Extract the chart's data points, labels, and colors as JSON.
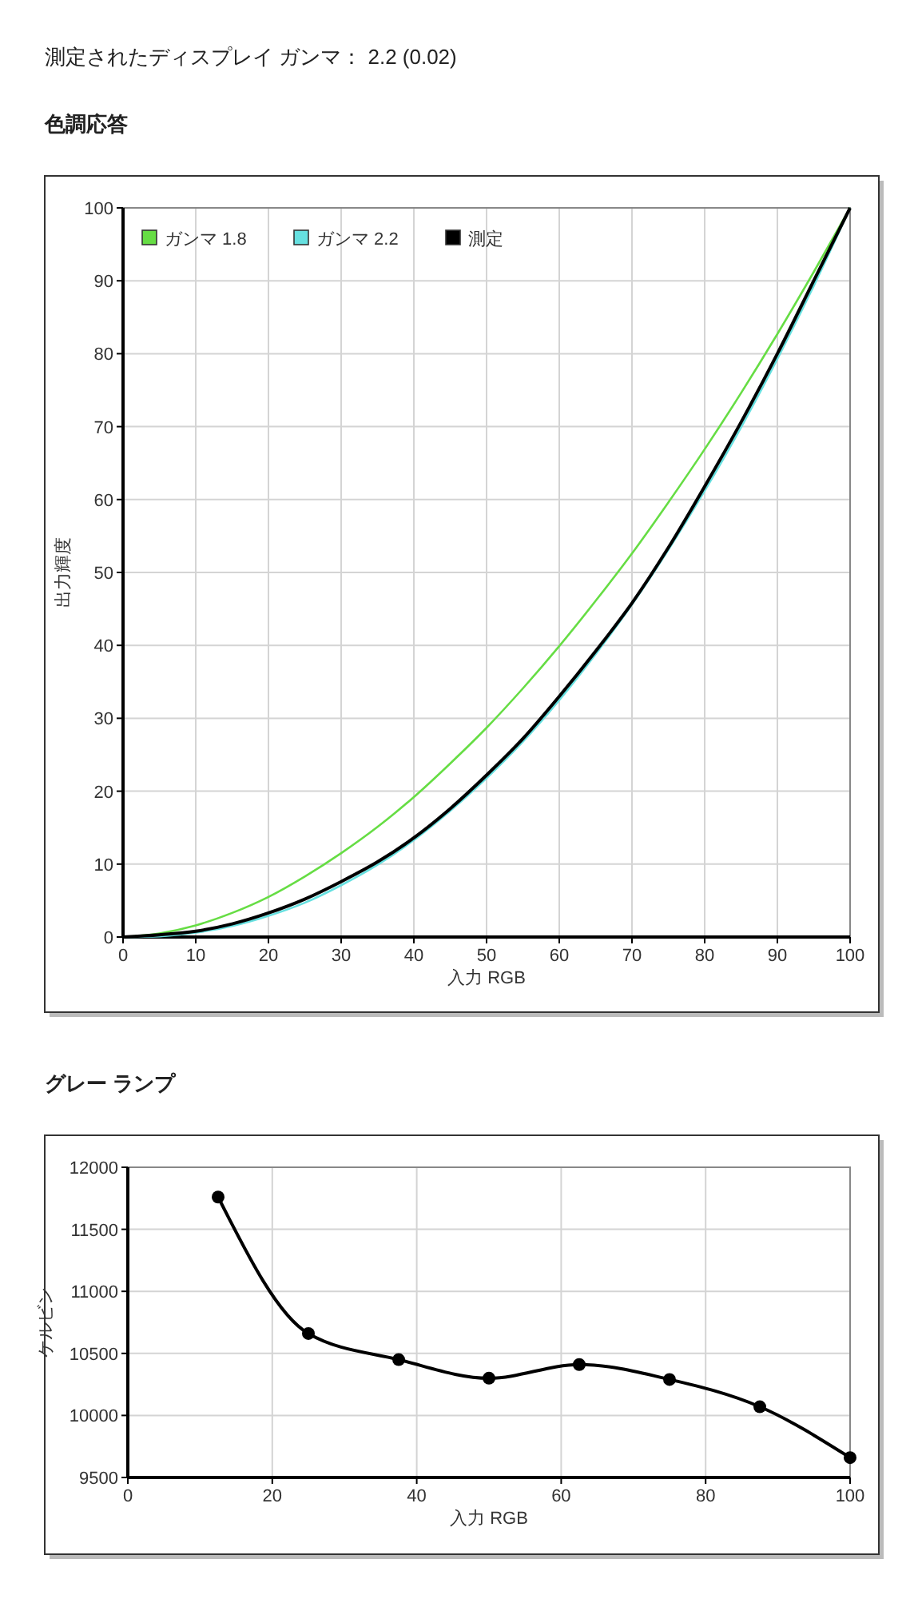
{
  "chart_data": [
    {
      "type": "line",
      "title": "測定されたディスプレイ ガンマ： 2.2 (0.02)",
      "subtitle": "色調応答",
      "xlabel": "入力 RGB",
      "ylabel": "出力輝度",
      "x": [
        0,
        5,
        10,
        15,
        20,
        25,
        30,
        35,
        40,
        45,
        50,
        55,
        60,
        65,
        70,
        75,
        80,
        85,
        90,
        95,
        100
      ],
      "series": [
        {
          "name": "ガンマ 1.8",
          "color": "#66dd44",
          "values": [
            0,
            0.5,
            1.6,
            3.3,
            5.5,
            8.3,
            11.5,
            15.1,
            19.2,
            23.8,
            28.7,
            34.1,
            39.9,
            46.1,
            52.6,
            59.6,
            66.9,
            74.6,
            82.7,
            91.2,
            100
          ]
        },
        {
          "name": "ガンマ 2.2",
          "color": "#66e0e0",
          "values": [
            0,
            0.1,
            0.6,
            1.5,
            2.9,
            4.7,
            7.1,
            9.9,
            13.3,
            17.3,
            21.8,
            26.8,
            32.5,
            38.8,
            45.6,
            53.1,
            61.2,
            69.9,
            79.3,
            89.3,
            100
          ]
        },
        {
          "name": "測定",
          "color": "#000000",
          "values": [
            0,
            0.3,
            0.8,
            1.8,
            3.3,
            5.2,
            7.6,
            10.3,
            13.6,
            17.6,
            22.2,
            27.2,
            33,
            39.2,
            45.8,
            53.4,
            61.8,
            70.6,
            80,
            90,
            100
          ]
        }
      ],
      "xlim": [
        0,
        100
      ],
      "ylim": [
        0,
        100
      ],
      "xticks": [
        0,
        10,
        20,
        30,
        40,
        50,
        60,
        70,
        80,
        90,
        100
      ],
      "yticks": [
        0,
        10,
        20,
        30,
        40,
        50,
        60,
        70,
        80,
        90,
        100
      ],
      "grid": true,
      "legend": "top left",
      "marker": "none"
    },
    {
      "type": "line",
      "title": "グレー ランプ",
      "xlabel": "入力 RGB",
      "ylabel": "ケルビン",
      "x": [
        12.5,
        25,
        37.5,
        50,
        62.5,
        75,
        87.5,
        100
      ],
      "series": [
        {
          "color": "#000000",
          "values": [
            11760,
            10660,
            10450,
            10300,
            10410,
            10290,
            10070,
            9660
          ]
        }
      ],
      "xlim": [
        0,
        100
      ],
      "ylim": [
        9500,
        12000
      ],
      "xticks": [
        0,
        20,
        40,
        60,
        80,
        100
      ],
      "yticks": [
        9500,
        10000,
        10500,
        11000,
        11500,
        12000
      ],
      "grid": true,
      "marker": "circle"
    }
  ]
}
